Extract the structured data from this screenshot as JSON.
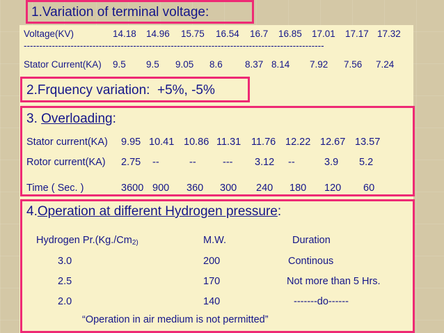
{
  "section1": {
    "title": "1.Variation of terminal voltage:",
    "voltage_label": "Voltage(KV)",
    "voltage_values": [
      "14.18",
      "14.96",
      "15.75",
      "16.54",
      "16.7",
      "16.85",
      "17.01",
      "17.17",
      "17.32"
    ],
    "dashes": "------------------------------------------------------------------------------------------------",
    "current_label": "Stator Current(KA)",
    "current_values": [
      "9.5",
      "9.5",
      "9.05",
      "8.6",
      "8.37",
      "8.14",
      "7.92",
      "7.56",
      "7.24"
    ]
  },
  "section2": {
    "title": "2.Frquency variation:  +5%, -5%"
  },
  "section3": {
    "prefix": "3. ",
    "title": "Overloading",
    "suffix": ":",
    "stator_label": "Stator current(KA)",
    "stator_values": [
      "9.95",
      "10.41",
      "10.86",
      "11.31",
      "11.76",
      "12.22",
      "12.67",
      "13.57"
    ],
    "rotor_label": "Rotor current(KA)",
    "rotor_values": [
      "2.75",
      "--",
      "--",
      "---",
      "3.12",
      "--",
      "3.9",
      "5.2"
    ],
    "time_label": "Time ( Sec. )",
    "time_values": [
      "3600",
      "900",
      "360",
      "300",
      "240",
      "180",
      "120",
      "60"
    ]
  },
  "section4": {
    "prefix": "4.",
    "title": "Operation at different Hydrogen pressure",
    "suffix": ":",
    "header": {
      "pressure": "Hydrogen Pr.(Kg./Cm",
      "pressure_sub": "2)",
      "mw": "M.W.",
      "duration": "Duration"
    },
    "rows": [
      {
        "pressure": "3.0",
        "mw": "200",
        "duration": "Continous"
      },
      {
        "pressure": "2.5",
        "mw": "170",
        "duration": "Not more than 5 Hrs."
      },
      {
        "pressure": "2.0",
        "mw": "140",
        "duration": "-------do------"
      }
    ],
    "note": "“Operation in air medium is not permitted”"
  },
  "colors": {
    "border": "#ee2a75",
    "text": "#15168a",
    "panel": "#f9f2c9",
    "background": "#d4c8a6"
  }
}
